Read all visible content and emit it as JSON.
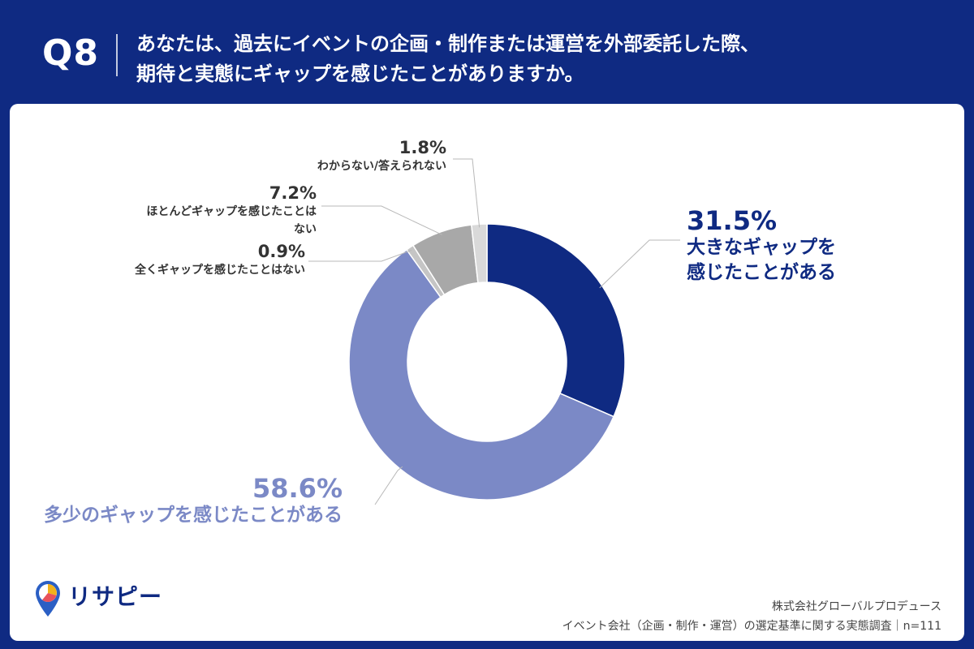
{
  "header": {
    "q_number": "Q8",
    "question_line1": "あなたは、過去にイベントの企画・制作または運営を外部委託した際、",
    "question_line2": "期待と実態にギャップを感じたことがありますか。"
  },
  "chart_data": {
    "type": "pie",
    "donut": true,
    "slices": [
      {
        "label_line1": "大きなギャップを",
        "label_line2": "感じたことがある",
        "value": 31.5,
        "value_text": "31.5%",
        "color": "#0f2a82"
      },
      {
        "label_line1": "多少のギャップを感じたことがある",
        "label_line2": "",
        "value": 58.6,
        "value_text": "58.6%",
        "color": "#7b89c6"
      },
      {
        "label_line1": "全くギャップを感じたことはない",
        "label_line2": "",
        "value": 0.9,
        "value_text": "0.9%",
        "color": "#c5c5c5"
      },
      {
        "label_line1": "ほとんどギャップを感じたことは",
        "label_line2": "ない",
        "value": 7.2,
        "value_text": "7.2%",
        "color": "#a8a8a8"
      },
      {
        "label_line1": "わからない/答えられない",
        "label_line2": "",
        "value": 1.8,
        "value_text": "1.8%",
        "color": "#d9d9d9"
      }
    ]
  },
  "logo": {
    "text": "リサピー",
    "icon": "pin-icon",
    "colors": [
      "#f2b21b",
      "#e8525b",
      "#3a7bd5"
    ]
  },
  "footer": {
    "company": "株式会社グローバルプロデュース",
    "survey": "イベント会社（企画・制作・運営）の選定基準に関する実態調査｜n=111"
  }
}
